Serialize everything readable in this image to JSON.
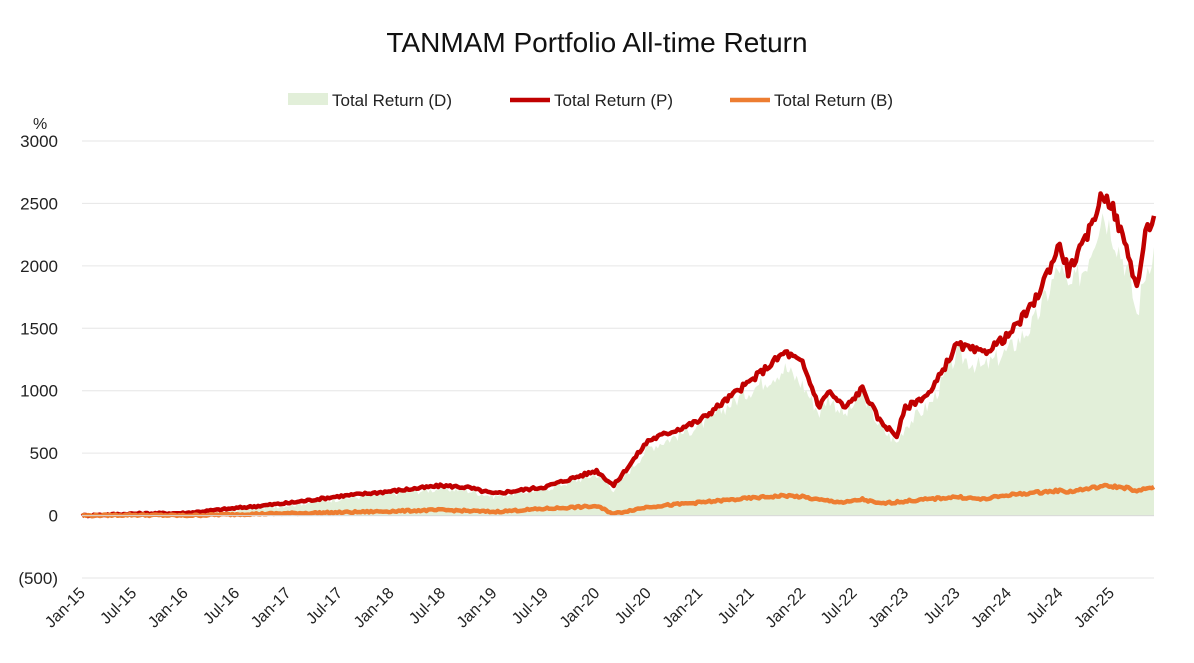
{
  "chart_data": {
    "type": "line",
    "title": "TANMAM Portfolio All-time Return",
    "ylabel": "%",
    "ylim": [
      -500,
      3000
    ],
    "yticks": [
      {
        "value": 3000,
        "label": "3000",
        "color": "#222222"
      },
      {
        "value": 2500,
        "label": "2500",
        "color": "#222222"
      },
      {
        "value": 2000,
        "label": "2000",
        "color": "#222222"
      },
      {
        "value": 1500,
        "label": "1500",
        "color": "#222222"
      },
      {
        "value": 1000,
        "label": "1000",
        "color": "#222222"
      },
      {
        "value": 500,
        "label": "500",
        "color": "#222222"
      },
      {
        "value": 0,
        "label": "0",
        "color": "#222222"
      },
      {
        "value": -500,
        "label": "(500)",
        "color": "#e0101a"
      }
    ],
    "x": [
      "Jan-15",
      "Jul-15",
      "Jan-16",
      "Jul-16",
      "Jan-17",
      "Jul-17",
      "Jan-18",
      "Jul-18",
      "Jan-19",
      "Jul-19",
      "Jan-20",
      "Jul-20",
      "Jan-21",
      "Jul-21",
      "Jan-22",
      "Jul-22",
      "Jan-23",
      "Jul-23",
      "Jan-24",
      "Jul-24",
      "Jan-25"
    ],
    "x_end": "Jun-25",
    "grid": true,
    "legend_position": "top-center",
    "series": [
      {
        "name": "Total Return (D)",
        "style": "area",
        "color": "#e2efd9",
        "points": [
          [
            "Jan-15",
            0
          ],
          [
            "Jul-15",
            10
          ],
          [
            "Jan-16",
            12
          ],
          [
            "Jul-16",
            45
          ],
          [
            "Jan-17",
            85
          ],
          [
            "Jul-17",
            135
          ],
          [
            "Jan-18",
            175
          ],
          [
            "Jul-18",
            215
          ],
          [
            "Oct-18",
            200
          ],
          [
            "Jan-19",
            155
          ],
          [
            "Jul-19",
            215
          ],
          [
            "Jan-20",
            330
          ],
          [
            "Mar-20",
            210
          ],
          [
            "Jul-20",
            540
          ],
          [
            "Jan-21",
            720
          ],
          [
            "Jul-21",
            1010
          ],
          [
            "Nov-21",
            1180
          ],
          [
            "Jan-22",
            1050
          ],
          [
            "Mar-22",
            820
          ],
          [
            "Apr-22",
            950
          ],
          [
            "Jun-22",
            800
          ],
          [
            "Aug-22",
            980
          ],
          [
            "Oct-22",
            710
          ],
          [
            "Dec-22",
            580
          ],
          [
            "Jan-23",
            720
          ],
          [
            "Apr-23",
            900
          ],
          [
            "Jul-23",
            1290
          ],
          [
            "Oct-23",
            1180
          ],
          [
            "Jan-24",
            1320
          ],
          [
            "Apr-24",
            1540
          ],
          [
            "Jul-24",
            2000
          ],
          [
            "Aug-24",
            1800
          ],
          [
            "Oct-24",
            2000
          ],
          [
            "Dec-24",
            2440
          ],
          [
            "Jan-25",
            2300
          ],
          [
            "Mar-25",
            1950
          ],
          [
            "Apr-25",
            1600
          ],
          [
            "May-25",
            1950
          ],
          [
            "Jun-25",
            2150
          ]
        ]
      },
      {
        "name": "Total Return (P)",
        "style": "line",
        "color": "#c00000",
        "points": [
          [
            "Jan-15",
            0
          ],
          [
            "Jul-15",
            15
          ],
          [
            "Jan-16",
            20
          ],
          [
            "Jul-16",
            60
          ],
          [
            "Jan-17",
            100
          ],
          [
            "Jul-17",
            155
          ],
          [
            "Jan-18",
            195
          ],
          [
            "Jul-18",
            240
          ],
          [
            "Oct-18",
            225
          ],
          [
            "Jan-19",
            175
          ],
          [
            "Jul-19",
            230
          ],
          [
            "Jan-20",
            360
          ],
          [
            "Mar-20",
            240
          ],
          [
            "Jul-20",
            600
          ],
          [
            "Jan-21",
            760
          ],
          [
            "Jul-21",
            1080
          ],
          [
            "Nov-21",
            1310
          ],
          [
            "Jan-22",
            1220
          ],
          [
            "Mar-22",
            870
          ],
          [
            "Apr-22",
            1000
          ],
          [
            "Jun-22",
            860
          ],
          [
            "Aug-22",
            1020
          ],
          [
            "Oct-22",
            760
          ],
          [
            "Dec-22",
            640
          ],
          [
            "Jan-23",
            860
          ],
          [
            "Apr-23",
            990
          ],
          [
            "Jul-23",
            1370
          ],
          [
            "Oct-23",
            1300
          ],
          [
            "Jan-24",
            1440
          ],
          [
            "Apr-24",
            1700
          ],
          [
            "Jul-24",
            2170
          ],
          [
            "Aug-24",
            1960
          ],
          [
            "Oct-24",
            2200
          ],
          [
            "Dec-24",
            2580
          ],
          [
            "Jan-25",
            2500
          ],
          [
            "Mar-25",
            2100
          ],
          [
            "Apr-25",
            1820
          ],
          [
            "May-25",
            2250
          ],
          [
            "Jun-25",
            2400
          ]
        ]
      },
      {
        "name": "Total Return (B)",
        "style": "line",
        "color": "#ed7d31",
        "points": [
          [
            "Jan-15",
            0
          ],
          [
            "Jul-15",
            5
          ],
          [
            "Jan-16",
            0
          ],
          [
            "Jul-16",
            10
          ],
          [
            "Jan-17",
            18
          ],
          [
            "Jul-17",
            25
          ],
          [
            "Jan-18",
            35
          ],
          [
            "Jul-18",
            45
          ],
          [
            "Jan-19",
            30
          ],
          [
            "Jul-19",
            55
          ],
          [
            "Jan-20",
            75
          ],
          [
            "Mar-20",
            15
          ],
          [
            "Jul-20",
            70
          ],
          [
            "Jan-21",
            105
          ],
          [
            "Jul-21",
            140
          ],
          [
            "Nov-21",
            160
          ],
          [
            "Jan-22",
            150
          ],
          [
            "Mar-22",
            125
          ],
          [
            "Jun-22",
            105
          ],
          [
            "Aug-22",
            130
          ],
          [
            "Oct-22",
            95
          ],
          [
            "Jan-23",
            115
          ],
          [
            "Jul-23",
            150
          ],
          [
            "Oct-23",
            130
          ],
          [
            "Jan-24",
            165
          ],
          [
            "Jul-24",
            200
          ],
          [
            "Aug-24",
            190
          ],
          [
            "Dec-24",
            235
          ],
          [
            "Jan-25",
            235
          ],
          [
            "Mar-25",
            220
          ],
          [
            "Apr-25",
            190
          ],
          [
            "May-25",
            215
          ],
          [
            "Jun-25",
            230
          ]
        ]
      }
    ]
  }
}
